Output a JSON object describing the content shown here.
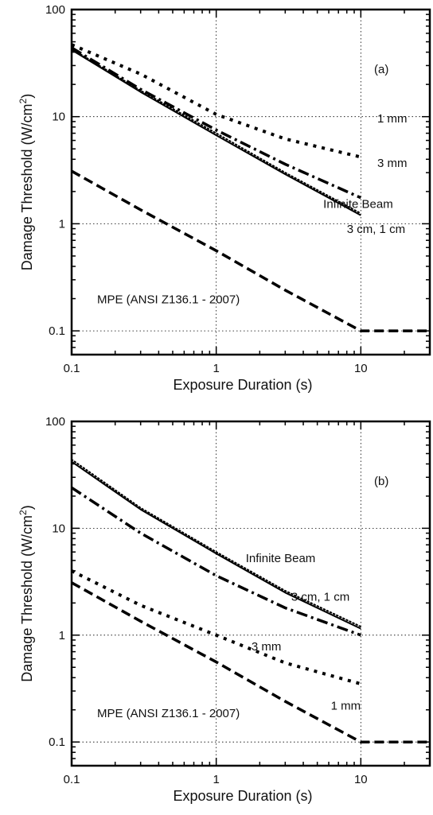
{
  "chart_data": [
    {
      "type": "line",
      "x_scale": "log",
      "y_scale": "log",
      "xlim": [
        0.1,
        30
      ],
      "ylim": [
        0.06,
        100
      ],
      "xlabel": "Exposure Duration (s)",
      "ylabel": "Damage Threshold (W/cm",
      "ylabel_sup": "2",
      "ylabel_close": ")",
      "x_ticks": [
        0.1,
        1,
        10
      ],
      "x_tick_labels": [
        "0.1",
        "1",
        "10"
      ],
      "y_ticks": [
        0.1,
        1,
        10,
        100
      ],
      "y_tick_labels": [
        "0.1",
        "1",
        "10",
        "100"
      ],
      "grid": true,
      "panel_label": "(a)",
      "series": [
        {
          "style": "dotted-heavy",
          "color": "#000000",
          "x": [
            0.1,
            0.3,
            1,
            3,
            10
          ],
          "y": [
            47,
            25,
            10.5,
            6.2,
            4.2
          ]
        },
        {
          "style": "dash-dot",
          "color": "#000000",
          "x": [
            0.1,
            0.3,
            1,
            3,
            10
          ],
          "y": [
            44,
            18,
            7.5,
            3.6,
            1.75
          ]
        },
        {
          "style": "dotted",
          "color": "#000000",
          "x": [
            0.1,
            0.3,
            1,
            3,
            10
          ],
          "y": [
            43,
            17.5,
            7.0,
            3.0,
            1.25
          ]
        },
        {
          "style": "solid",
          "color": "#000000",
          "x": [
            0.1,
            0.3,
            1,
            3,
            10
          ],
          "y": [
            42,
            17,
            6.7,
            2.9,
            1.2
          ]
        },
        {
          "style": "dashed",
          "color": "#000000",
          "x": [
            0.1,
            0.3,
            1,
            3,
            10,
            30
          ],
          "y": [
            3.1,
            1.35,
            0.56,
            0.24,
            0.1,
            0.1
          ]
        }
      ],
      "annotations": [
        {
          "text": "1 mm",
          "x": 13,
          "y": 8.8
        },
        {
          "text": "3 mm",
          "x": 13,
          "y": 3.4
        },
        {
          "text": "Infinite Beam",
          "x": 5.5,
          "y": 1.4
        },
        {
          "text": "3 cm, 1 cm",
          "x": 8,
          "y": 0.82
        },
        {
          "text": "MPE (ANSI Z136.1 - 2007)",
          "x": 0.15,
          "y": 0.18
        }
      ]
    },
    {
      "type": "line",
      "x_scale": "log",
      "y_scale": "log",
      "xlim": [
        0.1,
        30
      ],
      "ylim": [
        0.06,
        100
      ],
      "xlabel": "Exposure Duration (s)",
      "ylabel": "Damage Threshold (W/cm",
      "ylabel_sup": "2",
      "ylabel_close": ")",
      "x_ticks": [
        0.1,
        1,
        10
      ],
      "x_tick_labels": [
        "0.1",
        "1",
        "10"
      ],
      "y_ticks": [
        0.1,
        1,
        10,
        100
      ],
      "y_tick_labels": [
        "0.1",
        "1",
        "10",
        "100"
      ],
      "grid": true,
      "panel_label": "(b)",
      "series": [
        {
          "style": "dotted",
          "color": "#000000",
          "x": [
            0.1,
            0.3,
            1,
            3,
            10
          ],
          "y": [
            44,
            15.5,
            6.0,
            2.6,
            1.2
          ]
        },
        {
          "style": "solid",
          "color": "#000000",
          "x": [
            0.1,
            0.3,
            1,
            3,
            10
          ],
          "y": [
            42,
            15,
            5.8,
            2.5,
            1.15
          ]
        },
        {
          "style": "dash-dot",
          "color": "#000000",
          "x": [
            0.1,
            0.3,
            1,
            3,
            10
          ],
          "y": [
            24,
            9,
            3.6,
            1.8,
            1.0
          ]
        },
        {
          "style": "dotted-heavy",
          "color": "#000000",
          "x": [
            0.1,
            0.3,
            1,
            3,
            10
          ],
          "y": [
            4.0,
            1.9,
            1.0,
            0.55,
            0.35
          ]
        },
        {
          "style": "dashed",
          "color": "#000000",
          "x": [
            0.1,
            0.3,
            1,
            3,
            10,
            30
          ],
          "y": [
            3.1,
            1.35,
            0.56,
            0.24,
            0.1,
            0.1
          ]
        }
      ],
      "annotations": [
        {
          "text": "Infinite Beam",
          "x": 1.6,
          "y": 4.8
        },
        {
          "text": "3 cm, 1 cm",
          "x": 3.3,
          "y": 2.1
        },
        {
          "text": "3 mm",
          "x": 1.75,
          "y": 0.72
        },
        {
          "text": "1 mm",
          "x": 6.2,
          "y": 0.2
        },
        {
          "text": "MPE (ANSI Z136.1 - 2007)",
          "x": 0.15,
          "y": 0.17
        }
      ]
    }
  ]
}
